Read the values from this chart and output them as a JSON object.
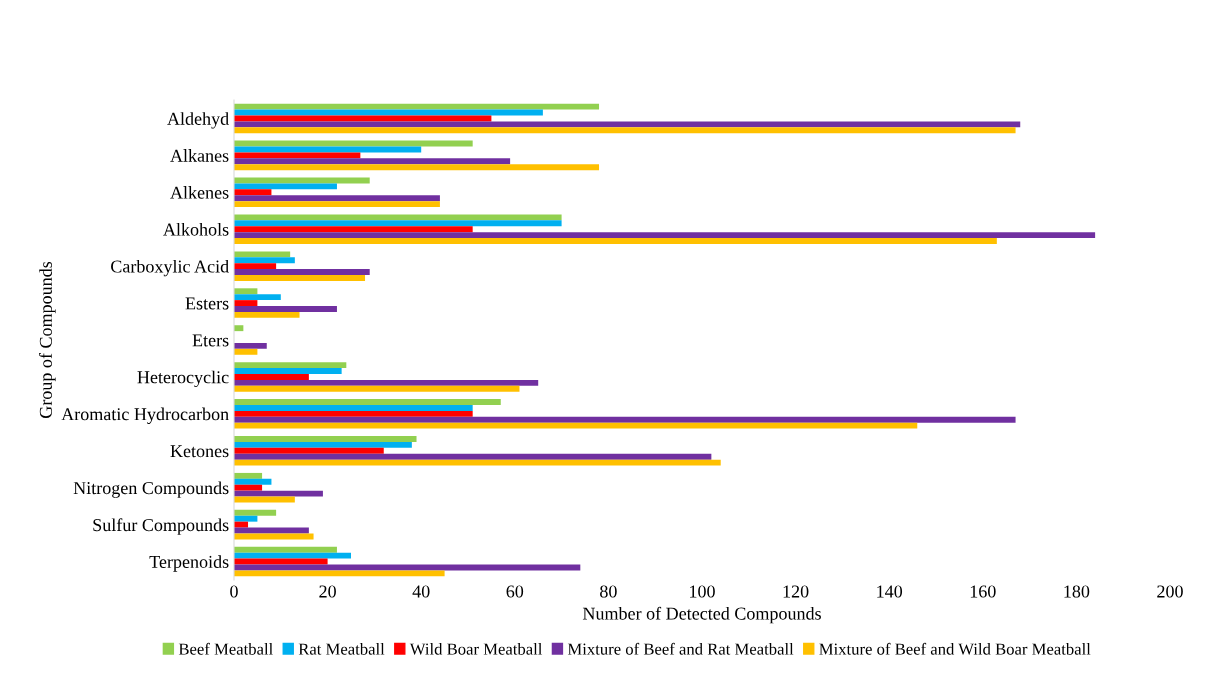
{
  "chart_data": {
    "type": "bar",
    "orientation": "horizontal",
    "xlabel": "Number of Detected Compounds",
    "ylabel": "Group of Compounds",
    "categories": [
      "Aldehyd",
      "Alkanes",
      "Alkenes",
      "Alkohols",
      "Carboxylic Acid",
      "Esters",
      "Eters",
      "Heterocyclic",
      "Aromatic Hydrocarbon",
      "Ketones",
      "Nitrogen Compounds",
      "Sulfur Compounds",
      "Terpenoids"
    ],
    "series": [
      {
        "name": "Beef Meatball",
        "color": "#92d050",
        "values": [
          78,
          51,
          29,
          70,
          12,
          5,
          2,
          24,
          57,
          39,
          6,
          9,
          22
        ]
      },
      {
        "name": "Rat Meatball",
        "color": "#00b0f0",
        "values": [
          66,
          40,
          22,
          70,
          13,
          10,
          0,
          23,
          51,
          38,
          8,
          5,
          25
        ]
      },
      {
        "name": "Wild Boar Meatball",
        "color": "#ff0000",
        "values": [
          55,
          27,
          8,
          51,
          9,
          5,
          0,
          16,
          51,
          32,
          6,
          3,
          20
        ]
      },
      {
        "name": "Mixture of Beef and Rat Meatball",
        "color": "#7030a0",
        "values": [
          168,
          59,
          44,
          184,
          29,
          22,
          7,
          65,
          167,
          102,
          19,
          16,
          74
        ]
      },
      {
        "name": "Mixture of Beef and Wild Boar Meatball",
        "color": "#ffc000",
        "values": [
          167,
          78,
          44,
          163,
          28,
          14,
          5,
          61,
          146,
          104,
          13,
          17,
          45
        ]
      }
    ],
    "xlim": [
      0,
      200
    ],
    "xticks": [
      0,
      20,
      40,
      60,
      80,
      100,
      120,
      140,
      160,
      180,
      200
    ],
    "grid": false,
    "legend": "bottom"
  }
}
